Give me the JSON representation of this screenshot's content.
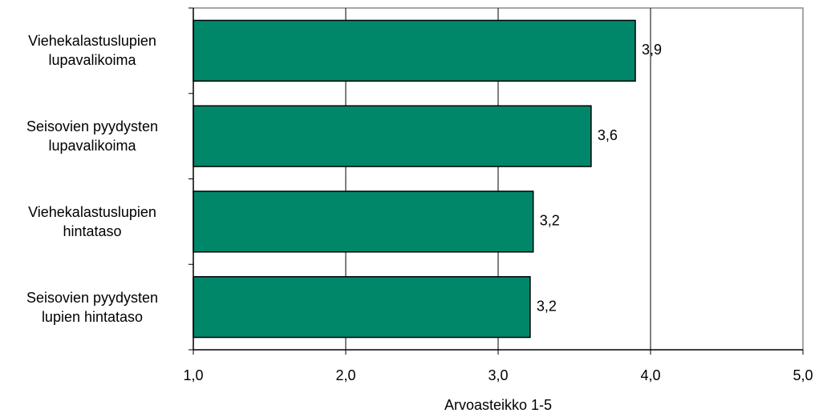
{
  "chart_data": {
    "type": "barh",
    "categories": [
      "Viehekalastuslupien\nlupavalikoima",
      "Seisovien pyydysten\nlupavalikoima",
      "Viehekalastuslupien\nhintataso",
      "Seisovien pyydysten\nlupien hintataso"
    ],
    "values": [
      3.9,
      3.61,
      3.23,
      3.21
    ],
    "value_labels": [
      "3,9",
      "3,6",
      "3,2",
      "3,2"
    ],
    "color": "#00876a",
    "xlim": [
      1,
      5
    ],
    "xticks": [
      {
        "value": 1,
        "label": "1,0"
      },
      {
        "value": 2,
        "label": "2,0"
      },
      {
        "value": 3,
        "label": "3,0"
      },
      {
        "value": 4,
        "label": "4,0"
      },
      {
        "value": 5,
        "label": "5,0"
      }
    ],
    "xlabel": "Arvoasteikko 1-5",
    "grid": true
  }
}
